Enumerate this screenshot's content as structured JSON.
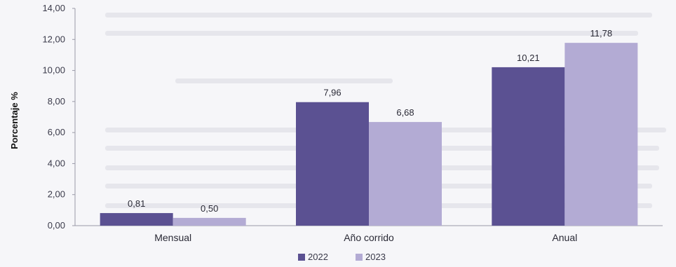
{
  "chart_data": {
    "type": "bar",
    "categories": [
      "Mensual",
      "Año corrido",
      "Anual"
    ],
    "series": [
      {
        "name": "2022",
        "values": [
          0.81,
          7.96,
          10.21
        ],
        "labels": [
          "0,81",
          "7,96",
          "10,21"
        ],
        "color": "#5b5192"
      },
      {
        "name": "2023",
        "values": [
          0.5,
          6.68,
          11.78
        ],
        "labels": [
          "0,50",
          "6,68",
          "11,78"
        ],
        "color": "#b3abd4"
      }
    ],
    "ylabel": "Porcentaje %",
    "ylim": [
      0,
      14
    ],
    "yticks": [
      "0,00",
      "2,00",
      "4,00",
      "6,00",
      "8,00",
      "10,00",
      "12,00",
      "14,00"
    ],
    "legend": "bottom-center",
    "grid": false
  }
}
